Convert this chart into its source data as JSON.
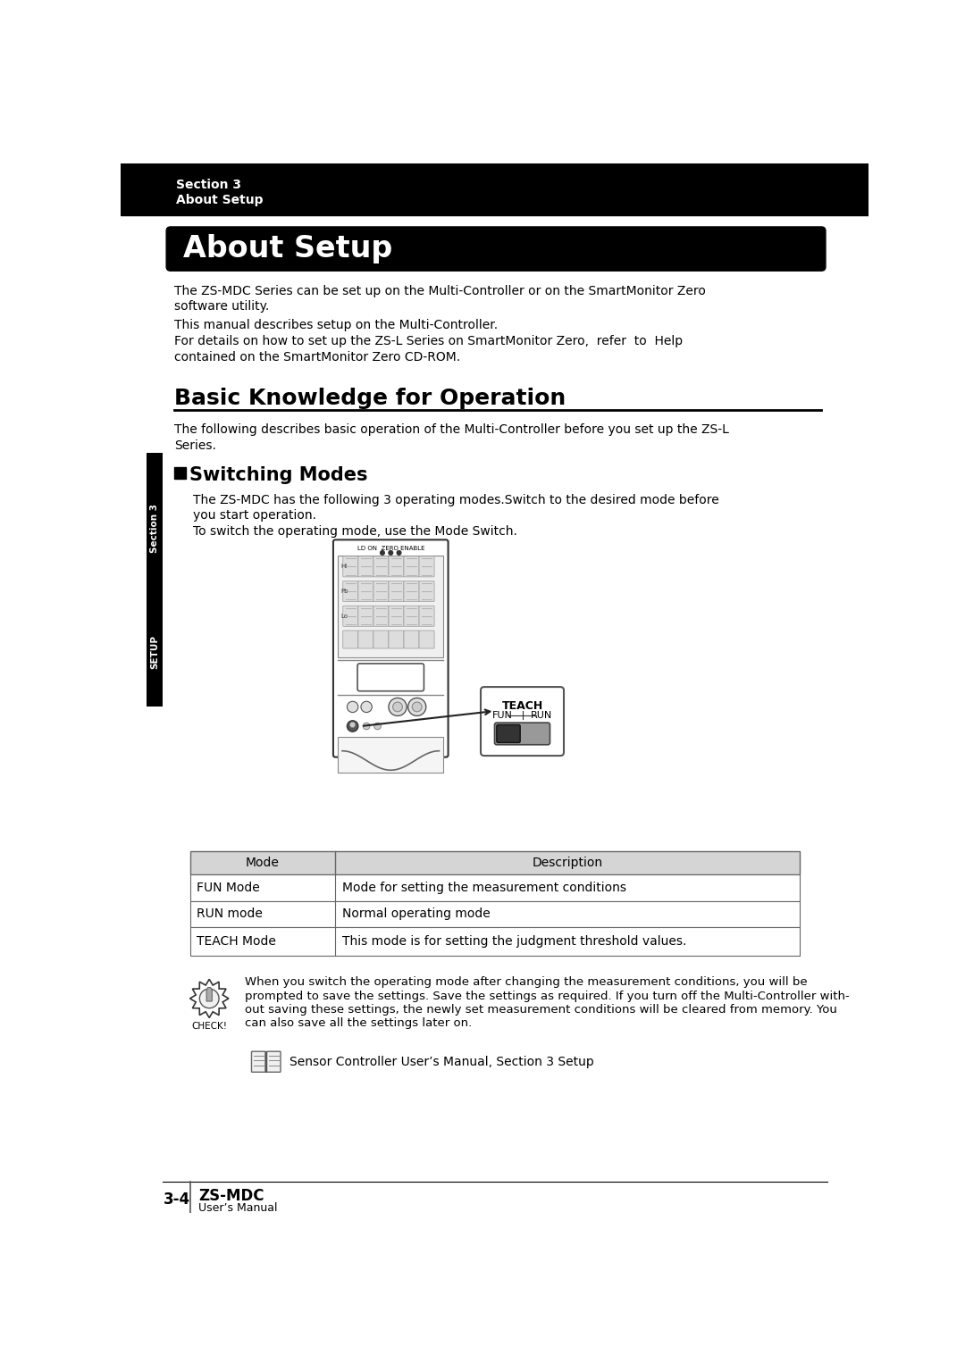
{
  "header_bg": "#000000",
  "header_text_color": "#ffffff",
  "header_line1": "Section 3",
  "header_line2": "About Setup",
  "page_bg": "#ffffff",
  "section_title_bg": "#000000",
  "section_title_text": "About Setup",
  "section_title_color": "#ffffff",
  "body_text_color": "#000000",
  "para1_line1": "The ZS-MDC Series can be set up on the Multi-Controller or on the SmartMonitor Zero",
  "para1_line2": "software utility.",
  "para1_line3": "This manual describes setup on the Multi-Controller.",
  "para1_line4": "For details on how to set up the ZS-L Series on SmartMonitor Zero,  refer  to  Help",
  "para1_line5": "contained on the SmartMonitor Zero CD-ROM.",
  "section2_title": "Basic Knowledge for Operation",
  "basic_desc_line1": "The following describes basic operation of the Multi-Controller before you set up the ZS-L",
  "basic_desc_line2": "Series.",
  "subsection_title": "Switching Modes",
  "switch_desc1": "The ZS-MDC has the following 3 operating modes.Switch to the desired mode before",
  "switch_desc2": "you start operation.",
  "switch_desc3": "To switch the operating mode, use the Mode Switch.",
  "table_header_mode": "Mode",
  "table_header_desc": "Description",
  "table_rows": [
    [
      "FUN Mode",
      "Mode for setting the measurement conditions"
    ],
    [
      "RUN mode",
      "Normal operating mode"
    ],
    [
      "TEACH Mode",
      "This mode is for setting the judgment threshold values."
    ]
  ],
  "note_text_lines": [
    "When you switch the operating mode after changing the measurement conditions, you will be",
    "prompted to save the settings. Save the settings as required. If you turn off the Multi-Controller with-",
    "out saving these settings, the newly set measurement conditions will be cleared from memory. You",
    "can also save all the settings later on."
  ],
  "ref_text": "Sensor Controller User’s Manual, Section 3 Setup",
  "footer_page": "3-4",
  "footer_title": "ZS-MDC",
  "footer_sub": "User’s Manual",
  "side_text1": "Section 3",
  "side_text2": "SETUP"
}
